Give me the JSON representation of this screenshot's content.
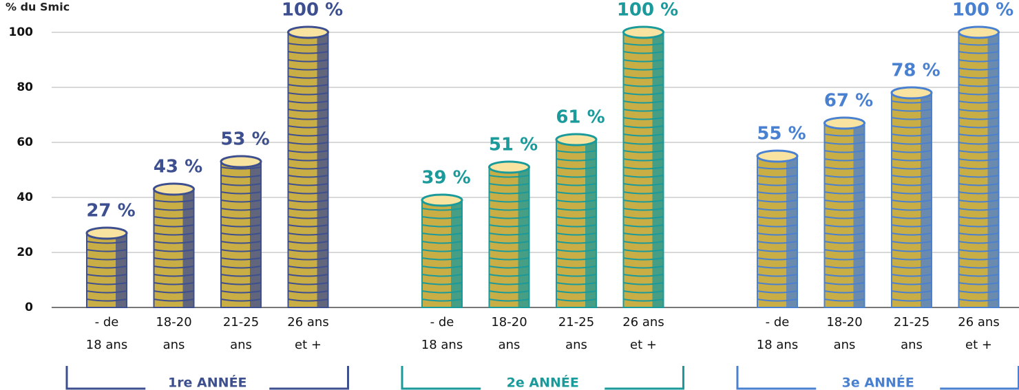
{
  "chart_data": {
    "type": "bar",
    "y_label": "% du Smic",
    "categories": [
      [
        "- de",
        "18 ans"
      ],
      [
        "18-20",
        "ans"
      ],
      [
        "21-25",
        "ans"
      ],
      [
        "26 ans",
        "et +"
      ]
    ],
    "series": [
      {
        "name": "1re ANNÉE",
        "color": "#3d4f8f",
        "values": [
          27,
          43,
          53,
          100
        ],
        "value_labels": [
          "27 %",
          "43 %",
          "53 %",
          "100 %"
        ]
      },
      {
        "name": "2e ANNÉE",
        "color": "#1a9a9a",
        "values": [
          39,
          51,
          61,
          100
        ],
        "value_labels": [
          "39 %",
          "51 %",
          "61 %",
          "100 %"
        ]
      },
      {
        "name": "3e ANNÉE",
        "color": "#4a80d0",
        "values": [
          55,
          67,
          78,
          100
        ],
        "value_labels": [
          "55 %",
          "67 %",
          "78 %",
          "100 %"
        ]
      }
    ],
    "ylim": [
      0,
      100
    ],
    "yticks": [
      0,
      20,
      40,
      60,
      80,
      100
    ],
    "grid": true
  }
}
